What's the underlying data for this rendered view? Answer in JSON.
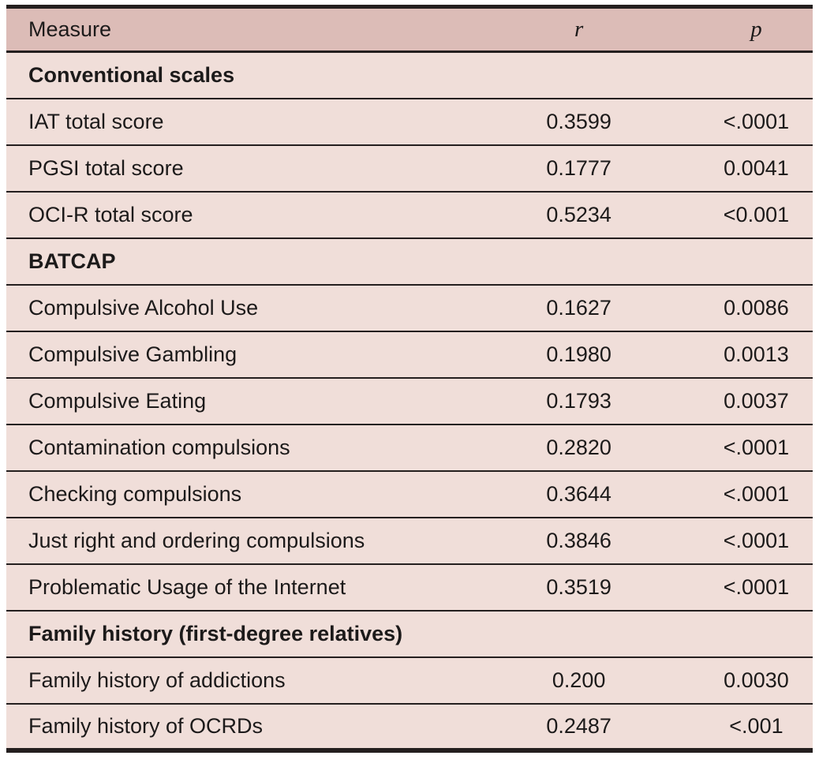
{
  "table": {
    "columns": [
      {
        "label": "Measure",
        "align": "left",
        "style": "plain"
      },
      {
        "label": "r",
        "align": "center",
        "style": "italic"
      },
      {
        "label": "p",
        "align": "center",
        "style": "italic"
      }
    ],
    "rows": [
      {
        "type": "section",
        "label": "Conventional scales"
      },
      {
        "type": "data",
        "measure": "IAT total score",
        "r": "0.3599",
        "p": "<.0001"
      },
      {
        "type": "data",
        "measure": "PGSI total score",
        "r": "0.1777",
        "p": "0.0041"
      },
      {
        "type": "data",
        "measure": "OCI-R total score",
        "r": "0.5234",
        "p": "<0.001"
      },
      {
        "type": "section",
        "label": "BATCAP"
      },
      {
        "type": "data",
        "measure": "Compulsive Alcohol Use",
        "r": "0.1627",
        "p": "0.0086"
      },
      {
        "type": "data",
        "measure": "Compulsive Gambling",
        "r": "0.1980",
        "p": "0.0013"
      },
      {
        "type": "data",
        "measure": "Compulsive Eating",
        "r": "0.1793",
        "p": "0.0037"
      },
      {
        "type": "data",
        "measure": "Contamination compulsions",
        "r": "0.2820",
        "p": "<.0001"
      },
      {
        "type": "data",
        "measure": "Checking compulsions",
        "r": "0.3644",
        "p": "<.0001"
      },
      {
        "type": "data",
        "measure": "Just right and ordering compulsions",
        "r": "0.3846",
        "p": "<.0001"
      },
      {
        "type": "data",
        "measure": "Problematic Usage of the Internet",
        "r": "0.3519",
        "p": "<.0001"
      },
      {
        "type": "section",
        "label": "Family history (first-degree relatives)"
      },
      {
        "type": "data",
        "measure": "Family history of addictions",
        "r": "0.200",
        "p": "0.0030"
      },
      {
        "type": "data",
        "measure": "Family history of OCRDs",
        "r": "0.2487",
        "p": "<.001"
      }
    ]
  },
  "colors": {
    "header_bg": "#dcbcb7",
    "body_bg": "#f0ded9",
    "border_color": "#241f1f",
    "text_color": "#1c1a1a",
    "page_bg": "#ffffff"
  }
}
